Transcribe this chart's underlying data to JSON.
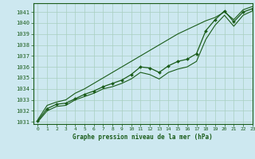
{
  "xlabel": "Graphe pression niveau de la mer (hPa)",
  "bg_color": "#cde8f0",
  "grid_color": "#a8cfc0",
  "line_color": "#1a5c1a",
  "xlim": [
    -0.5,
    23
  ],
  "ylim": [
    1030.8,
    1041.8
  ],
  "yticks": [
    1031,
    1032,
    1033,
    1034,
    1035,
    1036,
    1037,
    1038,
    1039,
    1040,
    1041
  ],
  "xticks": [
    0,
    1,
    2,
    3,
    4,
    5,
    6,
    7,
    8,
    9,
    10,
    11,
    12,
    13,
    14,
    15,
    16,
    17,
    18,
    19,
    20,
    21,
    22,
    23
  ],
  "hours": [
    0,
    1,
    2,
    3,
    4,
    5,
    6,
    7,
    8,
    9,
    10,
    11,
    12,
    13,
    14,
    15,
    16,
    17,
    18,
    19,
    20,
    21,
    22,
    23
  ],
  "main_y": [
    1031.1,
    1032.2,
    1032.6,
    1032.7,
    1033.1,
    1033.5,
    1033.8,
    1034.2,
    1034.5,
    1034.8,
    1035.3,
    1036.0,
    1035.9,
    1035.5,
    1036.1,
    1036.5,
    1036.7,
    1037.2,
    1039.3,
    1040.3,
    1041.1,
    1040.1,
    1041.0,
    1041.3
  ],
  "upper_y": [
    1031.2,
    1032.5,
    1032.8,
    1033.0,
    1033.6,
    1034.0,
    1034.5,
    1035.0,
    1035.5,
    1036.0,
    1036.5,
    1037.0,
    1037.5,
    1038.0,
    1038.5,
    1039.0,
    1039.4,
    1039.8,
    1040.2,
    1040.5,
    1041.0,
    1040.3,
    1041.2,
    1041.5
  ],
  "lower_y": [
    1031.0,
    1032.0,
    1032.4,
    1032.5,
    1033.0,
    1033.3,
    1033.6,
    1034.0,
    1034.2,
    1034.5,
    1034.9,
    1035.5,
    1035.3,
    1034.9,
    1035.5,
    1035.8,
    1036.0,
    1036.5,
    1038.5,
    1039.8,
    1040.7,
    1039.7,
    1040.7,
    1041.1
  ]
}
